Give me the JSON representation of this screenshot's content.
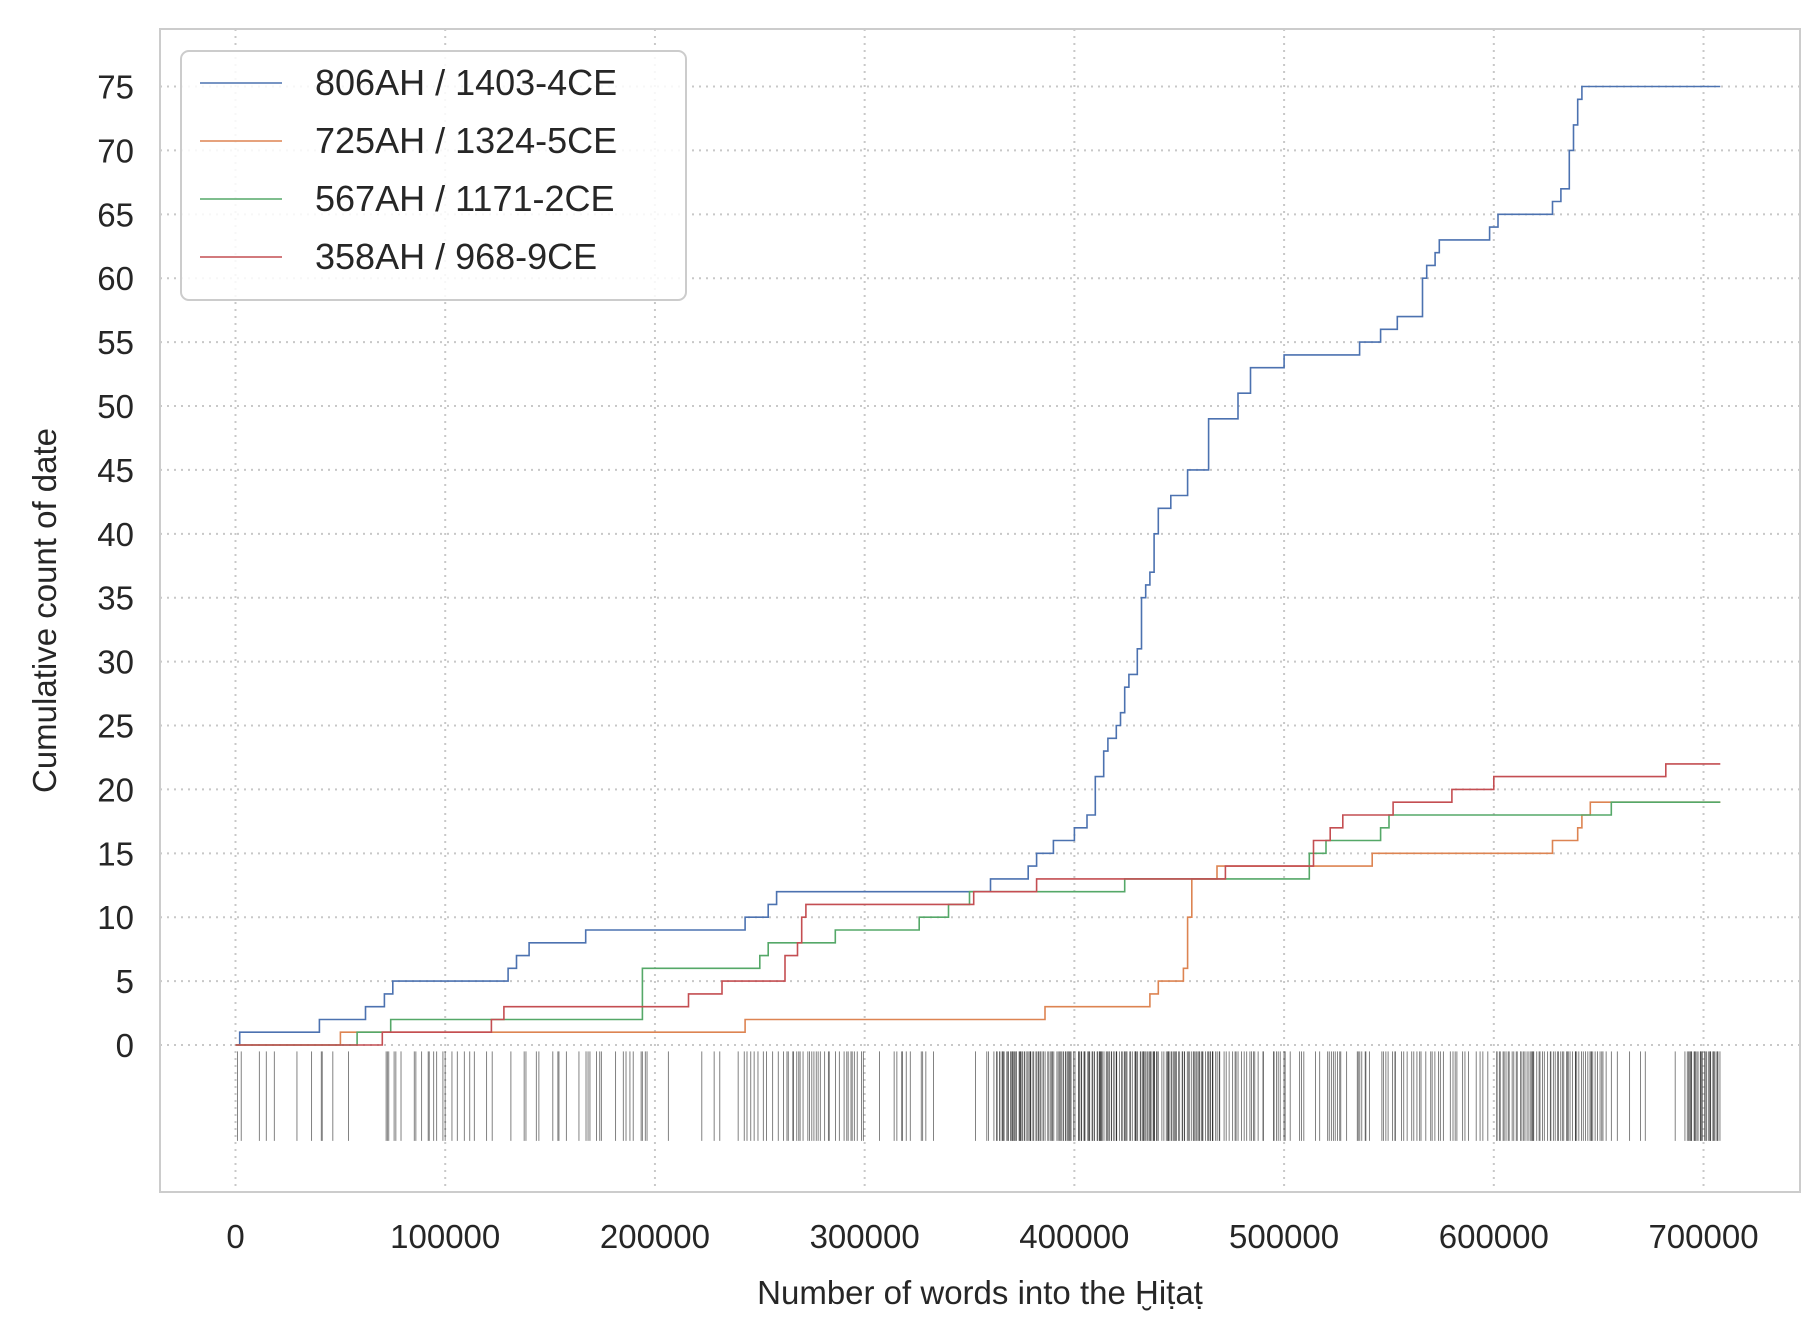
{
  "chart_data": {
    "type": "line",
    "title": "",
    "xlabel": "Number of words into the Ḫiṭaṭ",
    "ylabel": "Cumulative count of date",
    "xlim": [
      -36000,
      746000
    ],
    "ylim": [
      -11.5,
      79.5
    ],
    "x_ticks": [
      0,
      100000,
      200000,
      300000,
      400000,
      500000,
      600000,
      700000
    ],
    "x_tick_labels": [
      "0",
      "100000",
      "200000",
      "300000",
      "400000",
      "500000",
      "600000",
      "700000"
    ],
    "y_ticks": [
      0,
      5,
      10,
      15,
      20,
      25,
      30,
      35,
      40,
      45,
      50,
      55,
      60,
      65,
      70,
      75
    ],
    "y_tick_labels": [
      "0",
      "5",
      "10",
      "15",
      "20",
      "25",
      "30",
      "35",
      "40",
      "45",
      "50",
      "55",
      "60",
      "65",
      "70",
      "75"
    ],
    "grid": true,
    "legend_position": "top-left",
    "series": [
      {
        "name": "806AH / 1403-4CE",
        "color": "#4c72b0",
        "step_points": [
          [
            0,
            0
          ],
          [
            2000,
            1
          ],
          [
            40000,
            2
          ],
          [
            62000,
            3
          ],
          [
            71000,
            4
          ],
          [
            75000,
            5
          ],
          [
            130000,
            6
          ],
          [
            134000,
            7
          ],
          [
            140000,
            8
          ],
          [
            167000,
            9
          ],
          [
            243000,
            10
          ],
          [
            254000,
            11
          ],
          [
            258000,
            12
          ],
          [
            360000,
            13
          ],
          [
            378000,
            14
          ],
          [
            382000,
            15
          ],
          [
            390000,
            16
          ],
          [
            400000,
            17
          ],
          [
            406000,
            18
          ],
          [
            410000,
            21
          ],
          [
            414000,
            23
          ],
          [
            416000,
            24
          ],
          [
            420000,
            25
          ],
          [
            422000,
            26
          ],
          [
            424000,
            28
          ],
          [
            426000,
            29
          ],
          [
            430000,
            31
          ],
          [
            432000,
            35
          ],
          [
            434000,
            36
          ],
          [
            436000,
            37
          ],
          [
            438000,
            40
          ],
          [
            440000,
            42
          ],
          [
            446000,
            43
          ],
          [
            454000,
            45
          ],
          [
            464000,
            49
          ],
          [
            478000,
            51
          ],
          [
            484000,
            53
          ],
          [
            500000,
            54
          ],
          [
            536000,
            55
          ],
          [
            546000,
            56
          ],
          [
            554000,
            57
          ],
          [
            566000,
            60
          ],
          [
            568000,
            61
          ],
          [
            572000,
            62
          ],
          [
            574000,
            63
          ],
          [
            598000,
            64
          ],
          [
            602000,
            65
          ],
          [
            628000,
            66
          ],
          [
            632000,
            67
          ],
          [
            636000,
            70
          ],
          [
            638000,
            72
          ],
          [
            640000,
            74
          ],
          [
            642000,
            75
          ],
          [
            708000,
            75
          ]
        ]
      },
      {
        "name": "725AH / 1324-5CE",
        "color": "#dd8452",
        "step_points": [
          [
            0,
            0
          ],
          [
            50000,
            1
          ],
          [
            243000,
            2
          ],
          [
            386000,
            3
          ],
          [
            436000,
            4
          ],
          [
            440000,
            5
          ],
          [
            452000,
            6
          ],
          [
            454000,
            10
          ],
          [
            456000,
            13
          ],
          [
            468000,
            14
          ],
          [
            542000,
            15
          ],
          [
            628000,
            16
          ],
          [
            640000,
            17
          ],
          [
            642000,
            18
          ],
          [
            646000,
            19
          ],
          [
            708000,
            19
          ]
        ]
      },
      {
        "name": "567AH / 1171-2CE",
        "color": "#55a868",
        "step_points": [
          [
            0,
            0
          ],
          [
            58000,
            1
          ],
          [
            74000,
            2
          ],
          [
            194000,
            6
          ],
          [
            250000,
            7
          ],
          [
            254000,
            8
          ],
          [
            286000,
            9
          ],
          [
            326000,
            10
          ],
          [
            340000,
            11
          ],
          [
            350000,
            12
          ],
          [
            424000,
            13
          ],
          [
            512000,
            15
          ],
          [
            520000,
            16
          ],
          [
            546000,
            17
          ],
          [
            550000,
            18
          ],
          [
            656000,
            19
          ],
          [
            708000,
            19
          ]
        ]
      },
      {
        "name": "358AH / 968-9CE",
        "color": "#c44e52",
        "step_points": [
          [
            0,
            0
          ],
          [
            70000,
            1
          ],
          [
            122000,
            2
          ],
          [
            128000,
            3
          ],
          [
            216000,
            4
          ],
          [
            232000,
            5
          ],
          [
            262000,
            7
          ],
          [
            268000,
            8
          ],
          [
            270000,
            10
          ],
          [
            272000,
            11
          ],
          [
            352000,
            12
          ],
          [
            382000,
            13
          ],
          [
            472000,
            14
          ],
          [
            514000,
            16
          ],
          [
            522000,
            17
          ],
          [
            528000,
            18
          ],
          [
            540000,
            18
          ],
          [
            552000,
            19
          ],
          [
            580000,
            20
          ],
          [
            600000,
            21
          ],
          [
            682000,
            22
          ],
          [
            708000,
            22
          ]
        ]
      }
    ],
    "rug_ticks_description": "dense rug of date occurrences along x, 0 to 708000"
  }
}
